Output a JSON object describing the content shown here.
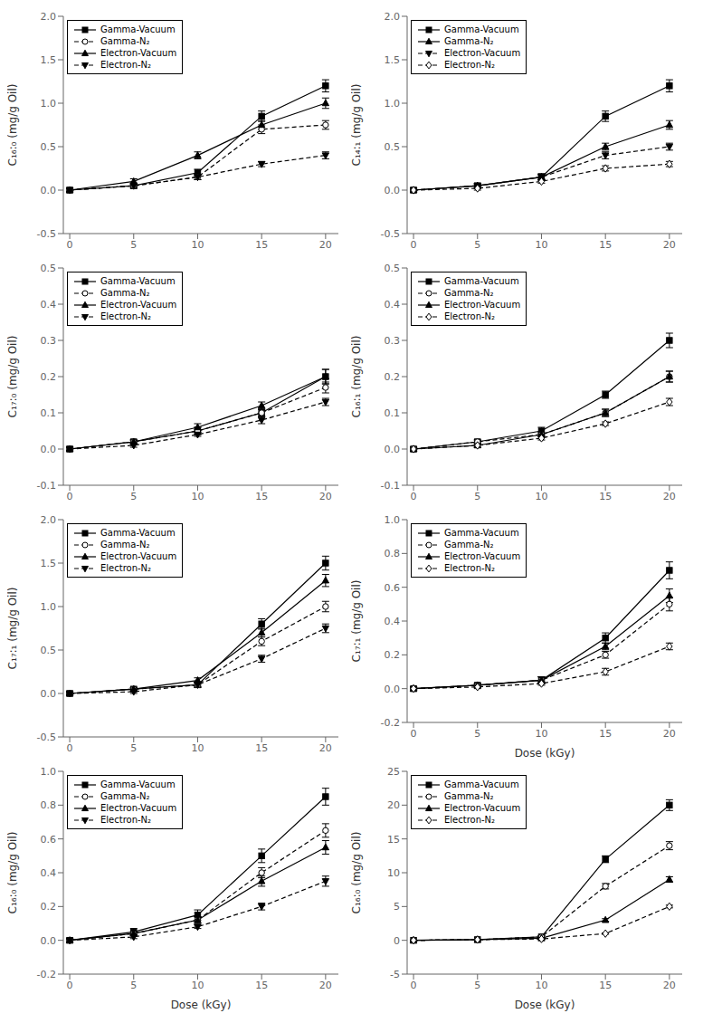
{
  "chart_data": [
    {
      "type": "line",
      "ylabel": "C₁₆:₀ (mg/g Oil)",
      "x": [
        0,
        5,
        10,
        15,
        20
      ],
      "xlim": [
        -0.5,
        21
      ],
      "xticks": [
        0,
        5,
        10,
        15,
        20
      ],
      "ylim": [
        -0.5,
        2.0
      ],
      "yticks": [
        -0.5,
        {
          "value": 0,
          "label": "0.0"
        },
        0.5,
        {
          "value": 1.0,
          "label": "1.0"
        },
        1.5,
        {
          "value": 2.0,
          "label": "2.0"
        }
      ],
      "legend": "upper left",
      "series": [
        {
          "name": "Gamma-Vacuum",
          "color": "#000000",
          "marker": "square",
          "line_style": "solid",
          "values": [
            0.0,
            0.05,
            0.2,
            0.85,
            1.2
          ],
          "yerr": [
            0.02,
            0.03,
            0.04,
            0.06,
            0.07
          ]
        },
        {
          "name": "Gamma-N₂",
          "color": "#000000",
          "marker": "circle-open",
          "line_style": "dashed",
          "values": [
            0.0,
            0.05,
            0.15,
            0.7,
            0.75
          ],
          "yerr": [
            0.02,
            0.02,
            0.03,
            0.05,
            0.05
          ]
        },
        {
          "name": "Electron-Vacuum",
          "color": "#000000",
          "marker": "triangle-up",
          "line_style": "solid",
          "values": [
            0.0,
            0.1,
            0.4,
            0.75,
            1.0
          ],
          "yerr": [
            0.02,
            0.03,
            0.04,
            0.05,
            0.06
          ]
        },
        {
          "name": "Electron-N₂",
          "color": "#000000",
          "marker": "triangle-down",
          "line_style": "dashed",
          "values": [
            0.0,
            0.05,
            0.15,
            0.3,
            0.4
          ],
          "yerr": [
            0.02,
            0.02,
            0.03,
            0.03,
            0.04
          ]
        }
      ]
    },
    {
      "type": "line",
      "ylabel": "C₁₄:₁ (mg/g Oil)",
      "x": [
        0,
        5,
        10,
        15,
        20
      ],
      "xlim": [
        -0.5,
        21
      ],
      "xticks": [
        0,
        5,
        10,
        15,
        20
      ],
      "ylim": [
        -0.5,
        2.0
      ],
      "yticks": [
        -0.5,
        {
          "value": 0,
          "label": "0.0"
        },
        0.5,
        {
          "value": 1.0,
          "label": "1.0"
        },
        1.5,
        {
          "value": 2.0,
          "label": "2.0"
        }
      ],
      "legend": "upper left",
      "series": [
        {
          "name": "Gamma-Vacuum",
          "color": "#000000",
          "marker": "square",
          "line_style": "solid",
          "values": [
            0.0,
            0.05,
            0.15,
            0.85,
            1.2
          ],
          "yerr": [
            0.02,
            0.03,
            0.04,
            0.06,
            0.07
          ]
        },
        {
          "name": "Gamma-N₂",
          "color": "#000000",
          "marker": "triangle-up",
          "line_style": "solid",
          "values": [
            0.0,
            0.05,
            0.15,
            0.5,
            0.75
          ],
          "yerr": [
            0.02,
            0.02,
            0.03,
            0.04,
            0.05
          ]
        },
        {
          "name": "Electron-Vacuum",
          "color": "#000000",
          "marker": "triangle-down",
          "line_style": "dashed",
          "values": [
            0.0,
            0.05,
            0.15,
            0.4,
            0.5
          ],
          "yerr": [
            0.02,
            0.02,
            0.03,
            0.04,
            0.04
          ]
        },
        {
          "name": "Electron-N₂",
          "color": "#000000",
          "marker": "diamond-open",
          "line_style": "dashed",
          "values": [
            0.0,
            0.02,
            0.1,
            0.25,
            0.3
          ],
          "yerr": [
            0.01,
            0.02,
            0.02,
            0.03,
            0.03
          ]
        }
      ]
    },
    {
      "type": "line",
      "ylabel": "C₁₇:₀ (mg/g Oil)",
      "x": [
        0,
        5,
        10,
        15,
        20
      ],
      "xlim": [
        -0.5,
        21
      ],
      "xticks": [
        0,
        5,
        10,
        15,
        20
      ],
      "ylim": [
        -0.1,
        0.5
      ],
      "yticks": [
        -0.1,
        {
          "value": 0,
          "label": "0.0"
        },
        0.1,
        0.2,
        0.3,
        0.4,
        0.5
      ],
      "legend": "upper left",
      "series": [
        {
          "name": "Gamma-Vacuum",
          "color": "#000000",
          "marker": "square",
          "line_style": "solid",
          "values": [
            0.0,
            0.02,
            0.05,
            0.1,
            0.2
          ],
          "yerr": [
            0.005,
            0.005,
            0.01,
            0.01,
            0.02
          ]
        },
        {
          "name": "Gamma-N₂",
          "color": "#000000",
          "marker": "circle-open",
          "line_style": "dashed",
          "values": [
            0.0,
            0.02,
            0.05,
            0.1,
            0.17
          ],
          "yerr": [
            0.005,
            0.005,
            0.01,
            0.01,
            0.015
          ]
        },
        {
          "name": "Electron-Vacuum",
          "color": "#000000",
          "marker": "triangle-up",
          "line_style": "solid",
          "values": [
            0.0,
            0.02,
            0.06,
            0.12,
            0.2
          ],
          "yerr": [
            0.005,
            0.005,
            0.01,
            0.01,
            0.02
          ]
        },
        {
          "name": "Electron-N₂",
          "color": "#000000",
          "marker": "triangle-down",
          "line_style": "dashed",
          "values": [
            0.0,
            0.01,
            0.04,
            0.08,
            0.13
          ],
          "yerr": [
            0.005,
            0.005,
            0.005,
            0.01,
            0.01
          ]
        }
      ]
    },
    {
      "type": "line",
      "ylabel": "C₁₆:₁ (mg/g Oil)",
      "x": [
        0,
        5,
        10,
        15,
        20
      ],
      "xlim": [
        -0.5,
        21
      ],
      "xticks": [
        0,
        5,
        10,
        15,
        20
      ],
      "ylim": [
        -0.1,
        0.5
      ],
      "yticks": [
        -0.1,
        {
          "value": 0,
          "label": "0.0"
        },
        0.1,
        0.2,
        0.3,
        0.4,
        0.5
      ],
      "legend": "upper left",
      "series": [
        {
          "name": "Gamma-Vacuum",
          "color": "#000000",
          "marker": "square",
          "line_style": "solid",
          "values": [
            0.0,
            0.02,
            0.05,
            0.15,
            0.3
          ],
          "yerr": [
            0.005,
            0.005,
            0.01,
            0.01,
            0.02
          ]
        },
        {
          "name": "Gamma-N₂",
          "color": "#000000",
          "marker": "circle-open",
          "line_style": "dashed",
          "values": [
            0.0,
            0.02,
            0.04,
            0.1,
            0.2
          ],
          "yerr": [
            0.005,
            0.005,
            0.005,
            0.01,
            0.015
          ]
        },
        {
          "name": "Electron-Vacuum",
          "color": "#000000",
          "marker": "triangle-up",
          "line_style": "solid",
          "values": [
            0.0,
            0.01,
            0.04,
            0.1,
            0.2
          ],
          "yerr": [
            0.005,
            0.005,
            0.005,
            0.01,
            0.015
          ]
        },
        {
          "name": "Electron-N₂",
          "color": "#000000",
          "marker": "diamond-open",
          "line_style": "dashed",
          "values": [
            0.0,
            0.01,
            0.03,
            0.07,
            0.13
          ],
          "yerr": [
            0.005,
            0.005,
            0.005,
            0.005,
            0.01
          ]
        }
      ]
    },
    {
      "type": "line",
      "ylabel": "C₁₇:₁ (mg/g Oil)",
      "x": [
        0,
        5,
        10,
        15,
        20
      ],
      "xlim": [
        -0.5,
        21
      ],
      "xticks": [
        0,
        5,
        10,
        15,
        20
      ],
      "ylim": [
        -0.5,
        2.0
      ],
      "yticks": [
        -0.5,
        {
          "value": 0,
          "label": "0.0"
        },
        0.5,
        {
          "value": 1.0,
          "label": "1.0"
        },
        1.5,
        {
          "value": 2.0,
          "label": "2.0"
        }
      ],
      "legend": "upper left",
      "series": [
        {
          "name": "Gamma-Vacuum",
          "color": "#000000",
          "marker": "square",
          "line_style": "solid",
          "values": [
            0.0,
            0.05,
            0.1,
            0.8,
            1.5
          ],
          "yerr": [
            0.02,
            0.02,
            0.03,
            0.06,
            0.08
          ]
        },
        {
          "name": "Gamma-N₂",
          "color": "#000000",
          "marker": "circle-open",
          "line_style": "dashed",
          "values": [
            0.0,
            0.05,
            0.1,
            0.6,
            1.0
          ],
          "yerr": [
            0.02,
            0.02,
            0.03,
            0.05,
            0.06
          ]
        },
        {
          "name": "Electron-Vacuum",
          "color": "#000000",
          "marker": "triangle-up",
          "line_style": "solid",
          "values": [
            0.0,
            0.05,
            0.15,
            0.7,
            1.3
          ],
          "yerr": [
            0.02,
            0.02,
            0.03,
            0.05,
            0.07
          ]
        },
        {
          "name": "Electron-N₂",
          "color": "#000000",
          "marker": "triangle-down",
          "line_style": "dashed",
          "values": [
            0.0,
            0.02,
            0.1,
            0.4,
            0.75
          ],
          "yerr": [
            0.01,
            0.02,
            0.02,
            0.04,
            0.05
          ]
        }
      ]
    },
    {
      "type": "line",
      "ylabel": "C₁₇:₁ (mg/g Oil)",
      "xlabel": "Dose (kGy)",
      "x": [
        0,
        5,
        10,
        15,
        20
      ],
      "xlim": [
        -0.5,
        21
      ],
      "xticks": [
        0,
        5,
        10,
        15,
        20
      ],
      "ylim": [
        -0.2,
        1.0
      ],
      "yticks": [
        -0.2,
        {
          "value": 0,
          "label": "0.0"
        },
        0.2,
        0.4,
        0.6,
        0.8,
        {
          "value": 1.0,
          "label": "1.0"
        }
      ],
      "legend": "upper left",
      "series": [
        {
          "name": "Gamma-Vacuum",
          "color": "#000000",
          "marker": "square",
          "line_style": "solid",
          "values": [
            0.0,
            0.02,
            0.05,
            0.3,
            0.7
          ],
          "yerr": [
            0.01,
            0.01,
            0.02,
            0.03,
            0.05
          ]
        },
        {
          "name": "Gamma-N₂",
          "color": "#000000",
          "marker": "circle-open",
          "line_style": "dashed",
          "values": [
            0.0,
            0.02,
            0.05,
            0.2,
            0.5
          ],
          "yerr": [
            0.01,
            0.01,
            0.02,
            0.02,
            0.04
          ]
        },
        {
          "name": "Electron-Vacuum",
          "color": "#000000",
          "marker": "triangle-up",
          "line_style": "solid",
          "values": [
            0.0,
            0.02,
            0.05,
            0.25,
            0.55
          ],
          "yerr": [
            0.01,
            0.01,
            0.02,
            0.02,
            0.04
          ]
        },
        {
          "name": "Electron-N₂",
          "color": "#000000",
          "marker": "diamond-open",
          "line_style": "dashed",
          "values": [
            0.0,
            0.01,
            0.03,
            0.1,
            0.25
          ],
          "yerr": [
            0.01,
            0.01,
            0.01,
            0.02,
            0.02
          ]
        }
      ]
    },
    {
      "type": "line",
      "ylabel": "C₁₆:₀ (mg/g Oil)",
      "xlabel": "Dose (kGy)",
      "x": [
        0,
        5,
        10,
        15,
        20
      ],
      "xlim": [
        -0.5,
        21
      ],
      "xticks": [
        0,
        5,
        10,
        15,
        20
      ],
      "ylim": [
        -0.2,
        1.0
      ],
      "yticks": [
        -0.2,
        {
          "value": 0,
          "label": "0.0"
        },
        0.2,
        0.4,
        0.6,
        0.8,
        {
          "value": 1.0,
          "label": "1.0"
        }
      ],
      "legend": "upper left",
      "series": [
        {
          "name": "Gamma-Vacuum",
          "color": "#000000",
          "marker": "square",
          "line_style": "solid",
          "values": [
            0.0,
            0.05,
            0.15,
            0.5,
            0.85
          ],
          "yerr": [
            0.01,
            0.02,
            0.03,
            0.04,
            0.05
          ]
        },
        {
          "name": "Gamma-N₂",
          "color": "#000000",
          "marker": "circle-open",
          "line_style": "dashed",
          "values": [
            0.0,
            0.04,
            0.12,
            0.4,
            0.65
          ],
          "yerr": [
            0.01,
            0.01,
            0.02,
            0.03,
            0.04
          ]
        },
        {
          "name": "Electron-Vacuum",
          "color": "#000000",
          "marker": "triangle-up",
          "line_style": "solid",
          "values": [
            0.0,
            0.04,
            0.12,
            0.35,
            0.55
          ],
          "yerr": [
            0.01,
            0.01,
            0.02,
            0.03,
            0.04
          ]
        },
        {
          "name": "Electron-N₂",
          "color": "#000000",
          "marker": "triangle-down",
          "line_style": "dashed",
          "values": [
            0.0,
            0.02,
            0.08,
            0.2,
            0.35
          ],
          "yerr": [
            0.01,
            0.01,
            0.01,
            0.02,
            0.03
          ]
        }
      ]
    },
    {
      "type": "line",
      "ylabel": "C₁₆:₀ (mg/g Oil)",
      "xlabel": "Dose (kGy)",
      "x": [
        0,
        5,
        10,
        15,
        20
      ],
      "xlim": [
        -0.5,
        21
      ],
      "xticks": [
        0,
        5,
        10,
        15,
        20
      ],
      "ylim": [
        -5,
        25
      ],
      "yticks": [
        -5,
        0,
        5,
        10,
        15,
        20,
        25
      ],
      "legend": "upper left",
      "series": [
        {
          "name": "Gamma-Vacuum",
          "color": "#000000",
          "marker": "square",
          "line_style": "solid",
          "values": [
            0.0,
            0.1,
            0.5,
            12.0,
            20.0
          ],
          "yerr": [
            0.02,
            0.05,
            0.2,
            0.5,
            0.8
          ]
        },
        {
          "name": "Gamma-N₂",
          "color": "#000000",
          "marker": "circle-open",
          "line_style": "dashed",
          "values": [
            0.0,
            0.1,
            0.5,
            8.0,
            14.0
          ],
          "yerr": [
            0.02,
            0.05,
            0.2,
            0.4,
            0.6
          ]
        },
        {
          "name": "Electron-Vacuum",
          "color": "#000000",
          "marker": "triangle-up",
          "line_style": "solid",
          "values": [
            0.0,
            0.1,
            0.3,
            3.0,
            9.0
          ],
          "yerr": [
            0.02,
            0.04,
            0.1,
            0.2,
            0.4
          ]
        },
        {
          "name": "Electron-N₂",
          "color": "#000000",
          "marker": "diamond-open",
          "line_style": "dashed",
          "values": [
            0.0,
            0.1,
            0.2,
            1.0,
            5.0
          ],
          "yerr": [
            0.02,
            0.03,
            0.05,
            0.1,
            0.2
          ]
        }
      ]
    }
  ]
}
